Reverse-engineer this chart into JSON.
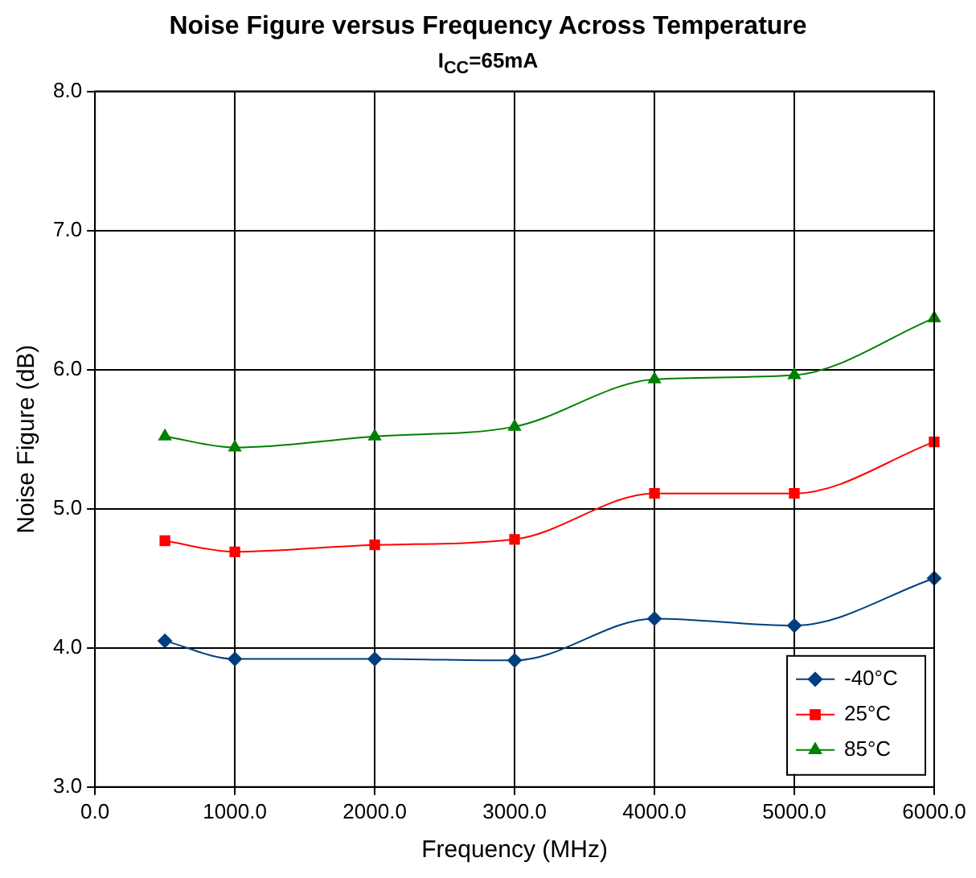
{
  "chart_data": {
    "type": "line",
    "title": "Noise Figure versus Frequency Across Temperature",
    "subtitle": "I$_{CC}$=65mA",
    "xlabel": "Frequency (MHz)",
    "ylabel": "Noise Figure (dB)",
    "x": [
      500,
      1000,
      2000,
      3000,
      4000,
      5000,
      6000
    ],
    "series": [
      {
        "name": "-40°C",
        "color": "#003f7f",
        "marker": "diamond",
        "values": [
          4.05,
          3.92,
          3.92,
          3.91,
          4.21,
          4.16,
          4.5
        ]
      },
      {
        "name": "25°C",
        "color": "#ff0000",
        "marker": "square",
        "values": [
          4.77,
          4.69,
          4.74,
          4.78,
          5.11,
          5.11,
          5.48
        ]
      },
      {
        "name": "85°C",
        "color": "#008000",
        "marker": "triangle",
        "values": [
          5.52,
          5.44,
          5.52,
          5.59,
          5.93,
          5.96,
          6.37
        ]
      }
    ],
    "xlim": [
      0,
      6000
    ],
    "xticks": [
      {
        "value": 0,
        "label": "0.0"
      },
      {
        "value": 1000,
        "label": "1000.0"
      },
      {
        "value": 2000,
        "label": "2000.0"
      },
      {
        "value": 3000,
        "label": "3000.0"
      },
      {
        "value": 4000,
        "label": "4000.0"
      },
      {
        "value": 5000,
        "label": "5000.0"
      },
      {
        "value": 6000,
        "label": "6000.0"
      }
    ],
    "ylim": [
      3,
      8
    ],
    "yticks": [
      {
        "value": 3,
        "label": "3.0"
      },
      {
        "value": 4,
        "label": "4.0"
      },
      {
        "value": 5,
        "label": "5.0"
      },
      {
        "value": 6,
        "label": "6.0"
      },
      {
        "value": 7,
        "label": "7.0"
      },
      {
        "value": 8,
        "label": "8.0"
      }
    ],
    "grid": true,
    "legend": "bottom right",
    "line_style": "solid"
  }
}
